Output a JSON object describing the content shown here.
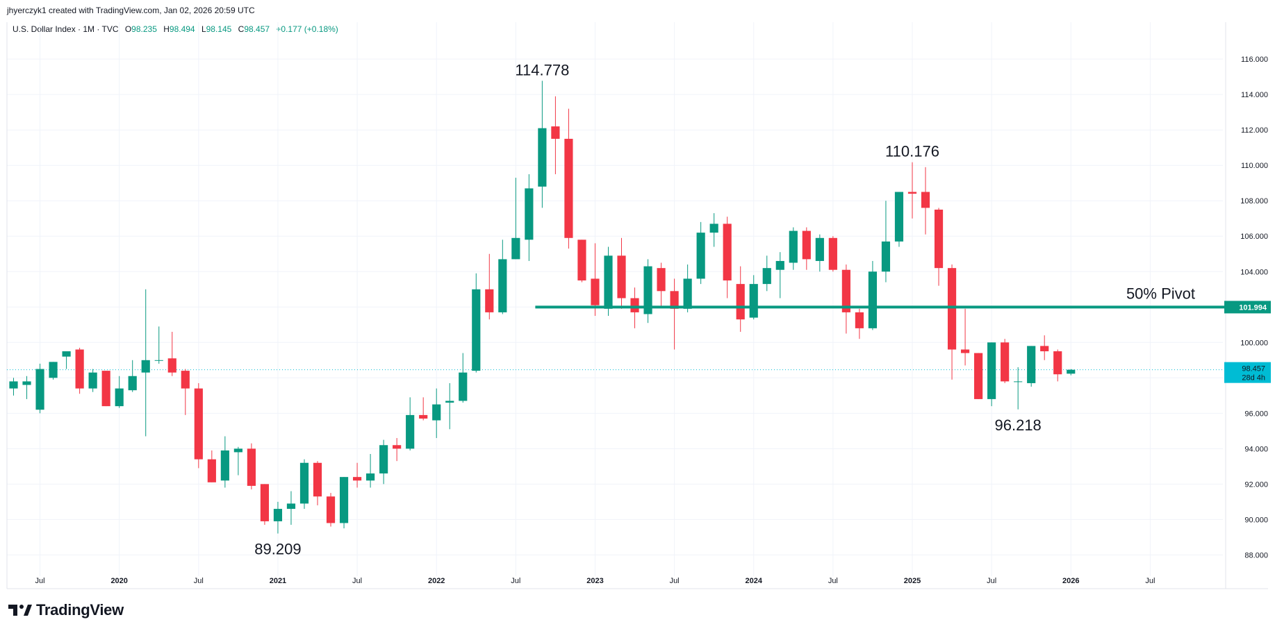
{
  "header": {
    "created_line": "jhyerczyk1 created with TradingView.com, Jan 02, 2026 20:59 UTC"
  },
  "legend": {
    "symbol": "U.S. Dollar Index · 1M · TVC",
    "open_label": "O",
    "open": "98.235",
    "high_label": "H",
    "high": "98.494",
    "low_label": "L",
    "low": "98.145",
    "close_label": "C",
    "close": "98.457",
    "change": "+0.177 (+0.18%)"
  },
  "footer": {
    "brand": "TradingView",
    "logo_icon": "tradingview-logo-icon"
  },
  "colors": {
    "up": "#089981",
    "down": "#f23645",
    "pivot": "#089981",
    "current": "#00bcd4",
    "grid": "#f0f3fa"
  },
  "chart_data": {
    "type": "candlestick",
    "timeframe": "1M",
    "ylim": [
      86.8,
      117.3
    ],
    "x_start": "2019-05",
    "x_end": "2026-12",
    "y_ticks": [
      "116.000",
      "114.000",
      "112.000",
      "110.000",
      "108.000",
      "106.000",
      "104.000",
      "102.000",
      "100.000",
      "98.000",
      "96.000",
      "94.000",
      "92.000",
      "90.000",
      "88.000"
    ],
    "x_ticks": [
      {
        "label": "Jul",
        "date": "2019-07"
      },
      {
        "label": "2020",
        "date": "2020-01"
      },
      {
        "label": "Jul",
        "date": "2020-07"
      },
      {
        "label": "2021",
        "date": "2021-01"
      },
      {
        "label": "Jul",
        "date": "2021-07"
      },
      {
        "label": "2022",
        "date": "2022-01"
      },
      {
        "label": "Jul",
        "date": "2022-07"
      },
      {
        "label": "2023",
        "date": "2023-01"
      },
      {
        "label": "Jul",
        "date": "2023-07"
      },
      {
        "label": "2024",
        "date": "2024-01"
      },
      {
        "label": "Jul",
        "date": "2024-07"
      },
      {
        "label": "2025",
        "date": "2025-01"
      },
      {
        "label": "Jul",
        "date": "2025-07"
      },
      {
        "label": "2026",
        "date": "2026-01"
      },
      {
        "label": "Jul",
        "date": "2026-07"
      }
    ],
    "candles": [
      {
        "d": "2019-05",
        "o": 97.4,
        "h": 98.0,
        "l": 97.0,
        "c": 97.8
      },
      {
        "d": "2019-06",
        "o": 97.6,
        "h": 98.1,
        "l": 96.8,
        "c": 97.8
      },
      {
        "d": "2019-07",
        "o": 96.2,
        "h": 98.8,
        "l": 96.0,
        "c": 98.5
      },
      {
        "d": "2019-08",
        "o": 98.0,
        "h": 98.9,
        "l": 97.9,
        "c": 98.9
      },
      {
        "d": "2019-09",
        "o": 99.2,
        "h": 99.4,
        "l": 98.5,
        "c": 99.5
      },
      {
        "d": "2019-10",
        "o": 99.6,
        "h": 99.7,
        "l": 97.1,
        "c": 97.4
      },
      {
        "d": "2019-11",
        "o": 97.4,
        "h": 98.5,
        "l": 97.2,
        "c": 98.3
      },
      {
        "d": "2019-12",
        "o": 98.4,
        "h": 98.4,
        "l": 96.4,
        "c": 96.4
      },
      {
        "d": "2020-01",
        "o": 96.4,
        "h": 98.1,
        "l": 96.3,
        "c": 97.4
      },
      {
        "d": "2020-02",
        "o": 97.3,
        "h": 99.0,
        "l": 97.2,
        "c": 98.1
      },
      {
        "d": "2020-03",
        "o": 98.3,
        "h": 103.0,
        "l": 94.7,
        "c": 99.0
      },
      {
        "d": "2020-04",
        "o": 99.0,
        "h": 100.9,
        "l": 98.8,
        "c": 99.0
      },
      {
        "d": "2020-05",
        "o": 99.1,
        "h": 100.6,
        "l": 98.1,
        "c": 98.3
      },
      {
        "d": "2020-06",
        "o": 98.4,
        "h": 98.5,
        "l": 95.9,
        "c": 97.4
      },
      {
        "d": "2020-07",
        "o": 97.4,
        "h": 97.7,
        "l": 92.9,
        "c": 93.4
      },
      {
        "d": "2020-08",
        "o": 93.4,
        "h": 93.9,
        "l": 92.1,
        "c": 92.1
      },
      {
        "d": "2020-09",
        "o": 92.2,
        "h": 94.7,
        "l": 91.8,
        "c": 93.9
      },
      {
        "d": "2020-10",
        "o": 93.8,
        "h": 94.1,
        "l": 92.5,
        "c": 94.0
      },
      {
        "d": "2020-11",
        "o": 94.0,
        "h": 94.3,
        "l": 91.7,
        "c": 91.9
      },
      {
        "d": "2020-12",
        "o": 92.0,
        "h": 92.0,
        "l": 89.7,
        "c": 89.9
      },
      {
        "d": "2021-01",
        "o": 89.9,
        "h": 91.0,
        "l": 89.209,
        "c": 90.6
      },
      {
        "d": "2021-02",
        "o": 90.6,
        "h": 91.6,
        "l": 89.7,
        "c": 90.9
      },
      {
        "d": "2021-03",
        "o": 90.9,
        "h": 93.4,
        "l": 90.6,
        "c": 93.2
      },
      {
        "d": "2021-04",
        "o": 93.2,
        "h": 93.3,
        "l": 90.8,
        "c": 91.3
      },
      {
        "d": "2021-05",
        "o": 91.3,
        "h": 91.5,
        "l": 89.6,
        "c": 89.8
      },
      {
        "d": "2021-06",
        "o": 89.8,
        "h": 92.4,
        "l": 89.5,
        "c": 92.4
      },
      {
        "d": "2021-07",
        "o": 92.4,
        "h": 93.2,
        "l": 91.8,
        "c": 92.2
      },
      {
        "d": "2021-08",
        "o": 92.2,
        "h": 93.7,
        "l": 91.8,
        "c": 92.6
      },
      {
        "d": "2021-09",
        "o": 92.6,
        "h": 94.5,
        "l": 92.0,
        "c": 94.2
      },
      {
        "d": "2021-10",
        "o": 94.2,
        "h": 94.6,
        "l": 93.3,
        "c": 94.0
      },
      {
        "d": "2021-11",
        "o": 94.0,
        "h": 96.9,
        "l": 93.9,
        "c": 95.9
      },
      {
        "d": "2021-12",
        "o": 95.9,
        "h": 96.9,
        "l": 95.6,
        "c": 95.7
      },
      {
        "d": "2022-01",
        "o": 95.6,
        "h": 97.4,
        "l": 94.6,
        "c": 96.5
      },
      {
        "d": "2022-02",
        "o": 96.6,
        "h": 97.7,
        "l": 95.1,
        "c": 96.7
      },
      {
        "d": "2022-03",
        "o": 96.7,
        "h": 99.4,
        "l": 96.6,
        "c": 98.3
      },
      {
        "d": "2022-04",
        "o": 98.4,
        "h": 103.9,
        "l": 98.3,
        "c": 103.0
      },
      {
        "d": "2022-05",
        "o": 103.0,
        "h": 105.0,
        "l": 101.3,
        "c": 101.7
      },
      {
        "d": "2022-06",
        "o": 101.7,
        "h": 105.8,
        "l": 101.6,
        "c": 104.7
      },
      {
        "d": "2022-07",
        "o": 104.7,
        "h": 109.3,
        "l": 104.7,
        "c": 105.9
      },
      {
        "d": "2022-08",
        "o": 105.8,
        "h": 109.5,
        "l": 104.6,
        "c": 108.7
      },
      {
        "d": "2022-09",
        "o": 108.8,
        "h": 114.778,
        "l": 107.6,
        "c": 112.1
      },
      {
        "d": "2022-10",
        "o": 112.2,
        "h": 113.9,
        "l": 109.5,
        "c": 111.5
      },
      {
        "d": "2022-11",
        "o": 111.5,
        "h": 113.2,
        "l": 105.3,
        "c": 105.9
      },
      {
        "d": "2022-12",
        "o": 105.8,
        "h": 105.8,
        "l": 103.4,
        "c": 103.5
      },
      {
        "d": "2023-01",
        "o": 103.6,
        "h": 105.6,
        "l": 101.5,
        "c": 102.1
      },
      {
        "d": "2023-02",
        "o": 101.9,
        "h": 105.4,
        "l": 101.5,
        "c": 104.9
      },
      {
        "d": "2023-03",
        "o": 104.9,
        "h": 105.9,
        "l": 101.9,
        "c": 102.5
      },
      {
        "d": "2023-04",
        "o": 102.5,
        "h": 103.1,
        "l": 100.8,
        "c": 101.7
      },
      {
        "d": "2023-05",
        "o": 101.6,
        "h": 104.7,
        "l": 101.1,
        "c": 104.3
      },
      {
        "d": "2023-06",
        "o": 104.2,
        "h": 104.5,
        "l": 102.0,
        "c": 102.9
      },
      {
        "d": "2023-07",
        "o": 102.9,
        "h": 103.6,
        "l": 99.6,
        "c": 101.9
      },
      {
        "d": "2023-08",
        "o": 101.9,
        "h": 104.4,
        "l": 101.7,
        "c": 103.6
      },
      {
        "d": "2023-09",
        "o": 103.6,
        "h": 106.8,
        "l": 103.3,
        "c": 106.2
      },
      {
        "d": "2023-10",
        "o": 106.2,
        "h": 107.3,
        "l": 105.4,
        "c": 106.7
      },
      {
        "d": "2023-11",
        "o": 106.7,
        "h": 107.1,
        "l": 102.5,
        "c": 103.5
      },
      {
        "d": "2023-12",
        "o": 103.3,
        "h": 104.3,
        "l": 100.6,
        "c": 101.3
      },
      {
        "d": "2024-01",
        "o": 101.4,
        "h": 103.8,
        "l": 101.3,
        "c": 103.3
      },
      {
        "d": "2024-02",
        "o": 103.3,
        "h": 104.9,
        "l": 102.9,
        "c": 104.2
      },
      {
        "d": "2024-03",
        "o": 104.1,
        "h": 105.1,
        "l": 102.5,
        "c": 104.6
      },
      {
        "d": "2024-04",
        "o": 104.5,
        "h": 106.5,
        "l": 104.1,
        "c": 106.3
      },
      {
        "d": "2024-05",
        "o": 106.3,
        "h": 106.5,
        "l": 104.1,
        "c": 104.7
      },
      {
        "d": "2024-06",
        "o": 104.6,
        "h": 106.1,
        "l": 104.0,
        "c": 105.9
      },
      {
        "d": "2024-07",
        "o": 105.9,
        "h": 106.0,
        "l": 104.0,
        "c": 104.1
      },
      {
        "d": "2024-08",
        "o": 104.1,
        "h": 104.4,
        "l": 100.5,
        "c": 101.7
      },
      {
        "d": "2024-09",
        "o": 101.7,
        "h": 101.9,
        "l": 100.2,
        "c": 100.8
      },
      {
        "d": "2024-10",
        "o": 100.8,
        "h": 104.6,
        "l": 100.7,
        "c": 104.0
      },
      {
        "d": "2024-11",
        "o": 104.0,
        "h": 108.0,
        "l": 103.4,
        "c": 105.7
      },
      {
        "d": "2024-12",
        "o": 105.7,
        "h": 108.5,
        "l": 105.4,
        "c": 108.5
      },
      {
        "d": "2025-01",
        "o": 108.5,
        "h": 110.176,
        "l": 107.0,
        "c": 108.4
      },
      {
        "d": "2025-02",
        "o": 108.5,
        "h": 109.9,
        "l": 106.1,
        "c": 107.6
      },
      {
        "d": "2025-03",
        "o": 107.5,
        "h": 107.6,
        "l": 103.2,
        "c": 104.2
      },
      {
        "d": "2025-04",
        "o": 104.2,
        "h": 104.4,
        "l": 97.9,
        "c": 99.6
      },
      {
        "d": "2025-05",
        "o": 99.6,
        "h": 101.9,
        "l": 98.7,
        "c": 99.4
      },
      {
        "d": "2025-06",
        "o": 99.4,
        "h": 99.4,
        "l": 96.8,
        "c": 96.8
      },
      {
        "d": "2025-07",
        "o": 96.8,
        "h": 100.0,
        "l": 96.4,
        "c": 100.0
      },
      {
        "d": "2025-08",
        "o": 100.0,
        "h": 100.2,
        "l": 97.7,
        "c": 97.8
      },
      {
        "d": "2025-09",
        "o": 97.8,
        "h": 98.6,
        "l": 96.218,
        "c": 97.8
      },
      {
        "d": "2025-10",
        "o": 97.7,
        "h": 99.8,
        "l": 97.5,
        "c": 99.8
      },
      {
        "d": "2025-11",
        "o": 99.8,
        "h": 100.4,
        "l": 99.0,
        "c": 99.5
      },
      {
        "d": "2025-12",
        "o": 99.5,
        "h": 99.6,
        "l": 97.8,
        "c": 98.2
      },
      {
        "d": "2026-01",
        "o": 98.235,
        "h": 98.494,
        "l": 98.145,
        "c": 98.457
      }
    ],
    "annotations": [
      {
        "text": "114.778",
        "date": "2022-09",
        "value": 114.778,
        "position": "above"
      },
      {
        "text": "110.176",
        "date": "2025-01",
        "value": 110.176,
        "position": "above"
      },
      {
        "text": "89.209",
        "date": "2021-01",
        "value": 89.209,
        "position": "below"
      },
      {
        "text": "96.218",
        "date": "2025-09",
        "value": 96.218,
        "position": "below"
      }
    ],
    "pivot": {
      "label": "50% Pivot",
      "value": 101.994,
      "value_label": "101.994",
      "start": "2022-09"
    },
    "current_price": {
      "value": 98.457,
      "value_label": "98.457",
      "countdown": "28d 4h"
    }
  }
}
